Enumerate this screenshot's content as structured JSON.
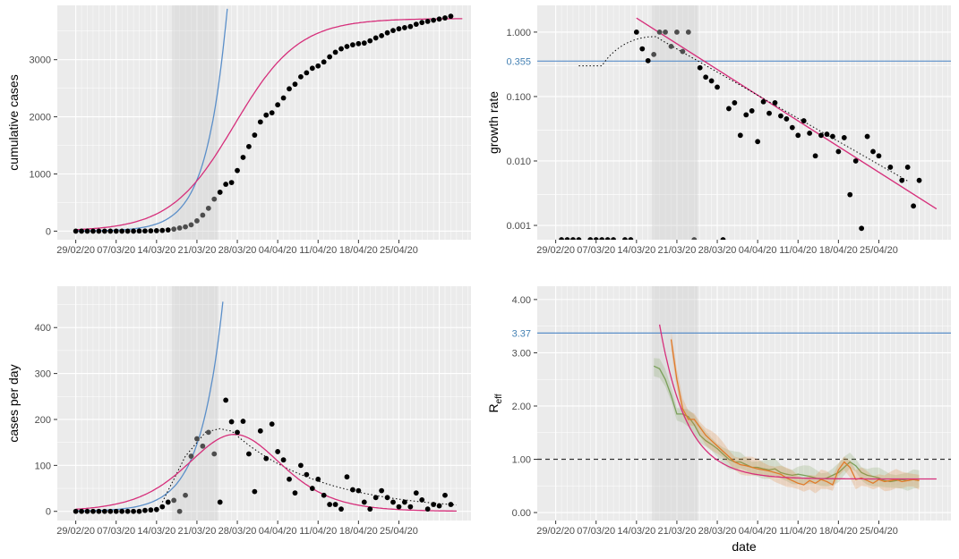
{
  "figure": {
    "x_tick_labels": [
      "29/02/20",
      "07/03/20",
      "14/03/20",
      "21/03/20",
      "28/03/20",
      "04/04/20",
      "11/04/20",
      "18/04/20",
      "25/04/20"
    ]
  },
  "colors": {
    "panel_bg": "#ebebeb",
    "grid_major": "#ffffff",
    "points": "#000000",
    "points_shaded": "#4d4d4d",
    "model_fit": "#d62f7b",
    "exp_fit": "#5b8fc9",
    "reference_line": "#5b8fc9",
    "shaded_period": "#dddddd",
    "reff_green": "#7aa05a",
    "reff_orange": "#e07b2a",
    "dotted": "#000000"
  },
  "chart_data": [
    {
      "id": "cumulative",
      "type": "scatter",
      "title": "",
      "xlabel": "",
      "ylabel": "cumulative cases",
      "x_start": "29/02/20",
      "ylim": [
        -150,
        3950
      ],
      "y_ticks": [
        0,
        1000,
        2000,
        3000
      ],
      "y_tick_labels": [
        "0",
        "1000",
        "2000",
        "3000"
      ],
      "shaded_period": [
        "17/03/20",
        "24/03/20"
      ],
      "series": [
        {
          "role": "observed",
          "values": [
            0,
            0,
            0,
            0,
            0,
            0,
            0,
            0,
            0,
            0,
            0,
            2,
            3,
            5,
            8,
            12,
            20,
            35,
            55,
            75,
            110,
            180,
            280,
            400,
            560,
            680,
            820,
            850,
            1060,
            1290,
            1480,
            1680,
            1910,
            2030,
            2070,
            2210,
            2330,
            2490,
            2570,
            2700,
            2770,
            2850,
            2890,
            2960,
            3050,
            3130,
            3190,
            3230,
            3260,
            3280,
            3290,
            3330,
            3380,
            3420,
            3470,
            3510,
            3540,
            3560,
            3580,
            3620,
            3650,
            3670,
            3690,
            3710,
            3730,
            3760
          ]
        },
        {
          "role": "logistic fit",
          "start": "29/02/20",
          "end": "06/05/20",
          "K": 3720,
          "r": 0.18,
          "t0": 27.5
        },
        {
          "role": "exponential fit",
          "start": "29/02/20",
          "end": "26/03/20",
          "a": 2.5,
          "r": 0.28
        }
      ]
    },
    {
      "id": "growth_rate",
      "type": "scatter",
      "title": "",
      "xlabel": "",
      "ylabel": "growth rate",
      "x_start": "29/02/20",
      "ylim": [
        0.0006,
        2.6
      ],
      "scale": "log",
      "y_ticks": [
        0.001,
        0.01,
        0.1,
        1
      ],
      "y_tick_labels": [
        "0.001",
        "0.010",
        "0.100",
        "1.000"
      ],
      "reference": {
        "value": 0.355,
        "label": "0.355"
      },
      "shaded_period": [
        "17/03/20",
        "24/03/20"
      ],
      "series": [
        {
          "role": "observed",
          "days": [
            1,
            2,
            3,
            4,
            6,
            7,
            8,
            9,
            10,
            12,
            13,
            14,
            15,
            16,
            17,
            18,
            19,
            20,
            21,
            22,
            23,
            24,
            25,
            26,
            27,
            28,
            29,
            30,
            31,
            32,
            33,
            34,
            35,
            36,
            37,
            38,
            39,
            40,
            41,
            42,
            43,
            44,
            45,
            46,
            47,
            48,
            49,
            50,
            51,
            52,
            53,
            54,
            55,
            56,
            57,
            58,
            59,
            60,
            61,
            62,
            63
          ],
          "values": [
            0.0006,
            0.0006,
            0.0006,
            0.0006,
            0.0006,
            0.0006,
            0.0006,
            0.0006,
            0.0006,
            0.0006,
            0.0006,
            1.0,
            0.55,
            0.36,
            0.45,
            1.0,
            1.0,
            0.6,
            1.0,
            0.5,
            1.0,
            0.0006,
            0.28,
            0.2,
            0.175,
            0.14,
            0.0006,
            0.065,
            0.08,
            0.025,
            0.052,
            0.06,
            0.02,
            0.083,
            0.055,
            0.08,
            0.05,
            0.045,
            0.033,
            0.025,
            0.042,
            0.027,
            0.012,
            0.025,
            0.026,
            0.024,
            0.014,
            0.023,
            0.003,
            0.01,
            0.0009,
            0.024,
            0.014,
            0.012,
            0.0005,
            0.008,
            0.0005,
            0.005,
            0.008,
            0.002,
            0.005
          ]
        },
        {
          "role": "regression fit",
          "start": "14/03/20",
          "end": "05/05/20",
          "from": 1.65,
          "to": 0.0018
        },
        {
          "role": "smoothed",
          "style": "dotted",
          "start": "04/03/20",
          "end": "06/05/20"
        }
      ]
    },
    {
      "id": "daily",
      "type": "scatter",
      "title": "",
      "xlabel": "",
      "ylabel": "cases per day",
      "x_start": "29/02/20",
      "ylim": [
        -20,
        490
      ],
      "y_ticks": [
        0,
        100,
        200,
        300,
        400
      ],
      "y_tick_labels": [
        "0",
        "100",
        "200",
        "300",
        "400"
      ],
      "shaded_period": [
        "17/03/20",
        "24/03/20"
      ],
      "series": [
        {
          "role": "observed",
          "values": [
            0,
            0,
            0,
            0,
            0,
            0,
            0,
            0,
            0,
            0,
            0,
            0,
            2,
            3,
            4,
            10,
            20,
            24,
            0,
            35,
            120,
            158,
            142,
            172,
            125,
            20,
            242,
            195,
            172,
            196,
            125,
            43,
            175,
            115,
            190,
            130,
            112,
            70,
            40,
            100,
            80,
            50,
            70,
            35,
            15,
            15,
            5,
            75,
            47,
            45,
            20,
            5,
            30,
            45,
            30,
            20,
            10,
            20,
            10,
            40,
            25,
            5,
            15,
            12,
            35,
            15
          ]
        },
        {
          "role": "model fit",
          "start": "29/02/20",
          "end": "06/05/20"
        },
        {
          "role": "exponential fit",
          "start": "29/02/20",
          "end": "26/03/20"
        },
        {
          "role": "smoothed",
          "style": "dotted",
          "start": "15/03/20",
          "end": "06/05/20"
        }
      ]
    },
    {
      "id": "reff",
      "type": "line",
      "title": "",
      "xlabel": "date",
      "ylabel_main": "R",
      "ylabel_sub": "eff",
      "x_start": "29/02/20",
      "ylim": [
        -0.15,
        4.25
      ],
      "y_ticks": [
        0,
        1,
        2,
        3,
        4
      ],
      "y_tick_labels": [
        "0.00",
        "1.00",
        "2.00",
        "3.00",
        "4.00"
      ],
      "reference": {
        "value": 3.37,
        "label": "3.37"
      },
      "threshold": {
        "value": 1.0,
        "style": "dashed"
      },
      "shaded_period": [
        "17/03/20",
        "24/03/20"
      ],
      "series": [
        {
          "role": "estimate (green)",
          "start": "17/03/20",
          "values": [
            2.75,
            2.7,
            2.5,
            2.2,
            1.85,
            1.85,
            1.8,
            1.65,
            1.45,
            1.35,
            1.28,
            1.2,
            1.1,
            1.0,
            0.95,
            0.95,
            0.9,
            0.85,
            0.85,
            0.82,
            0.8,
            0.82,
            0.75,
            0.72,
            0.7,
            0.72,
            0.7,
            0.68,
            0.65,
            0.62,
            0.65,
            0.7,
            0.75,
            0.85,
            0.95,
            0.88,
            0.75,
            0.7,
            0.68,
            0.65,
            0.6,
            0.58,
            0.6,
            0.62,
            0.6,
            0.62,
            0.6
          ]
        },
        {
          "role": "estimate (orange)",
          "start": "20/03/20",
          "values": [
            3.25,
            2.5,
            1.95,
            1.75,
            1.75,
            1.6,
            1.45,
            1.35,
            1.25,
            1.15,
            1.05,
            0.95,
            0.9,
            0.88,
            0.85,
            0.82,
            0.8,
            0.78,
            0.75,
            0.72,
            0.65,
            0.6,
            0.55,
            0.52,
            0.6,
            0.55,
            0.62,
            0.58,
            0.52,
            0.8,
            0.95,
            0.85,
            0.62,
            0.65,
            0.6,
            0.55,
            0.62,
            0.58,
            0.6,
            0.62,
            0.58,
            0.6,
            0.62,
            0.6
          ]
        },
        {
          "role": "model fit",
          "start": "18/03/20",
          "end": "06/05/20"
        }
      ]
    }
  ]
}
